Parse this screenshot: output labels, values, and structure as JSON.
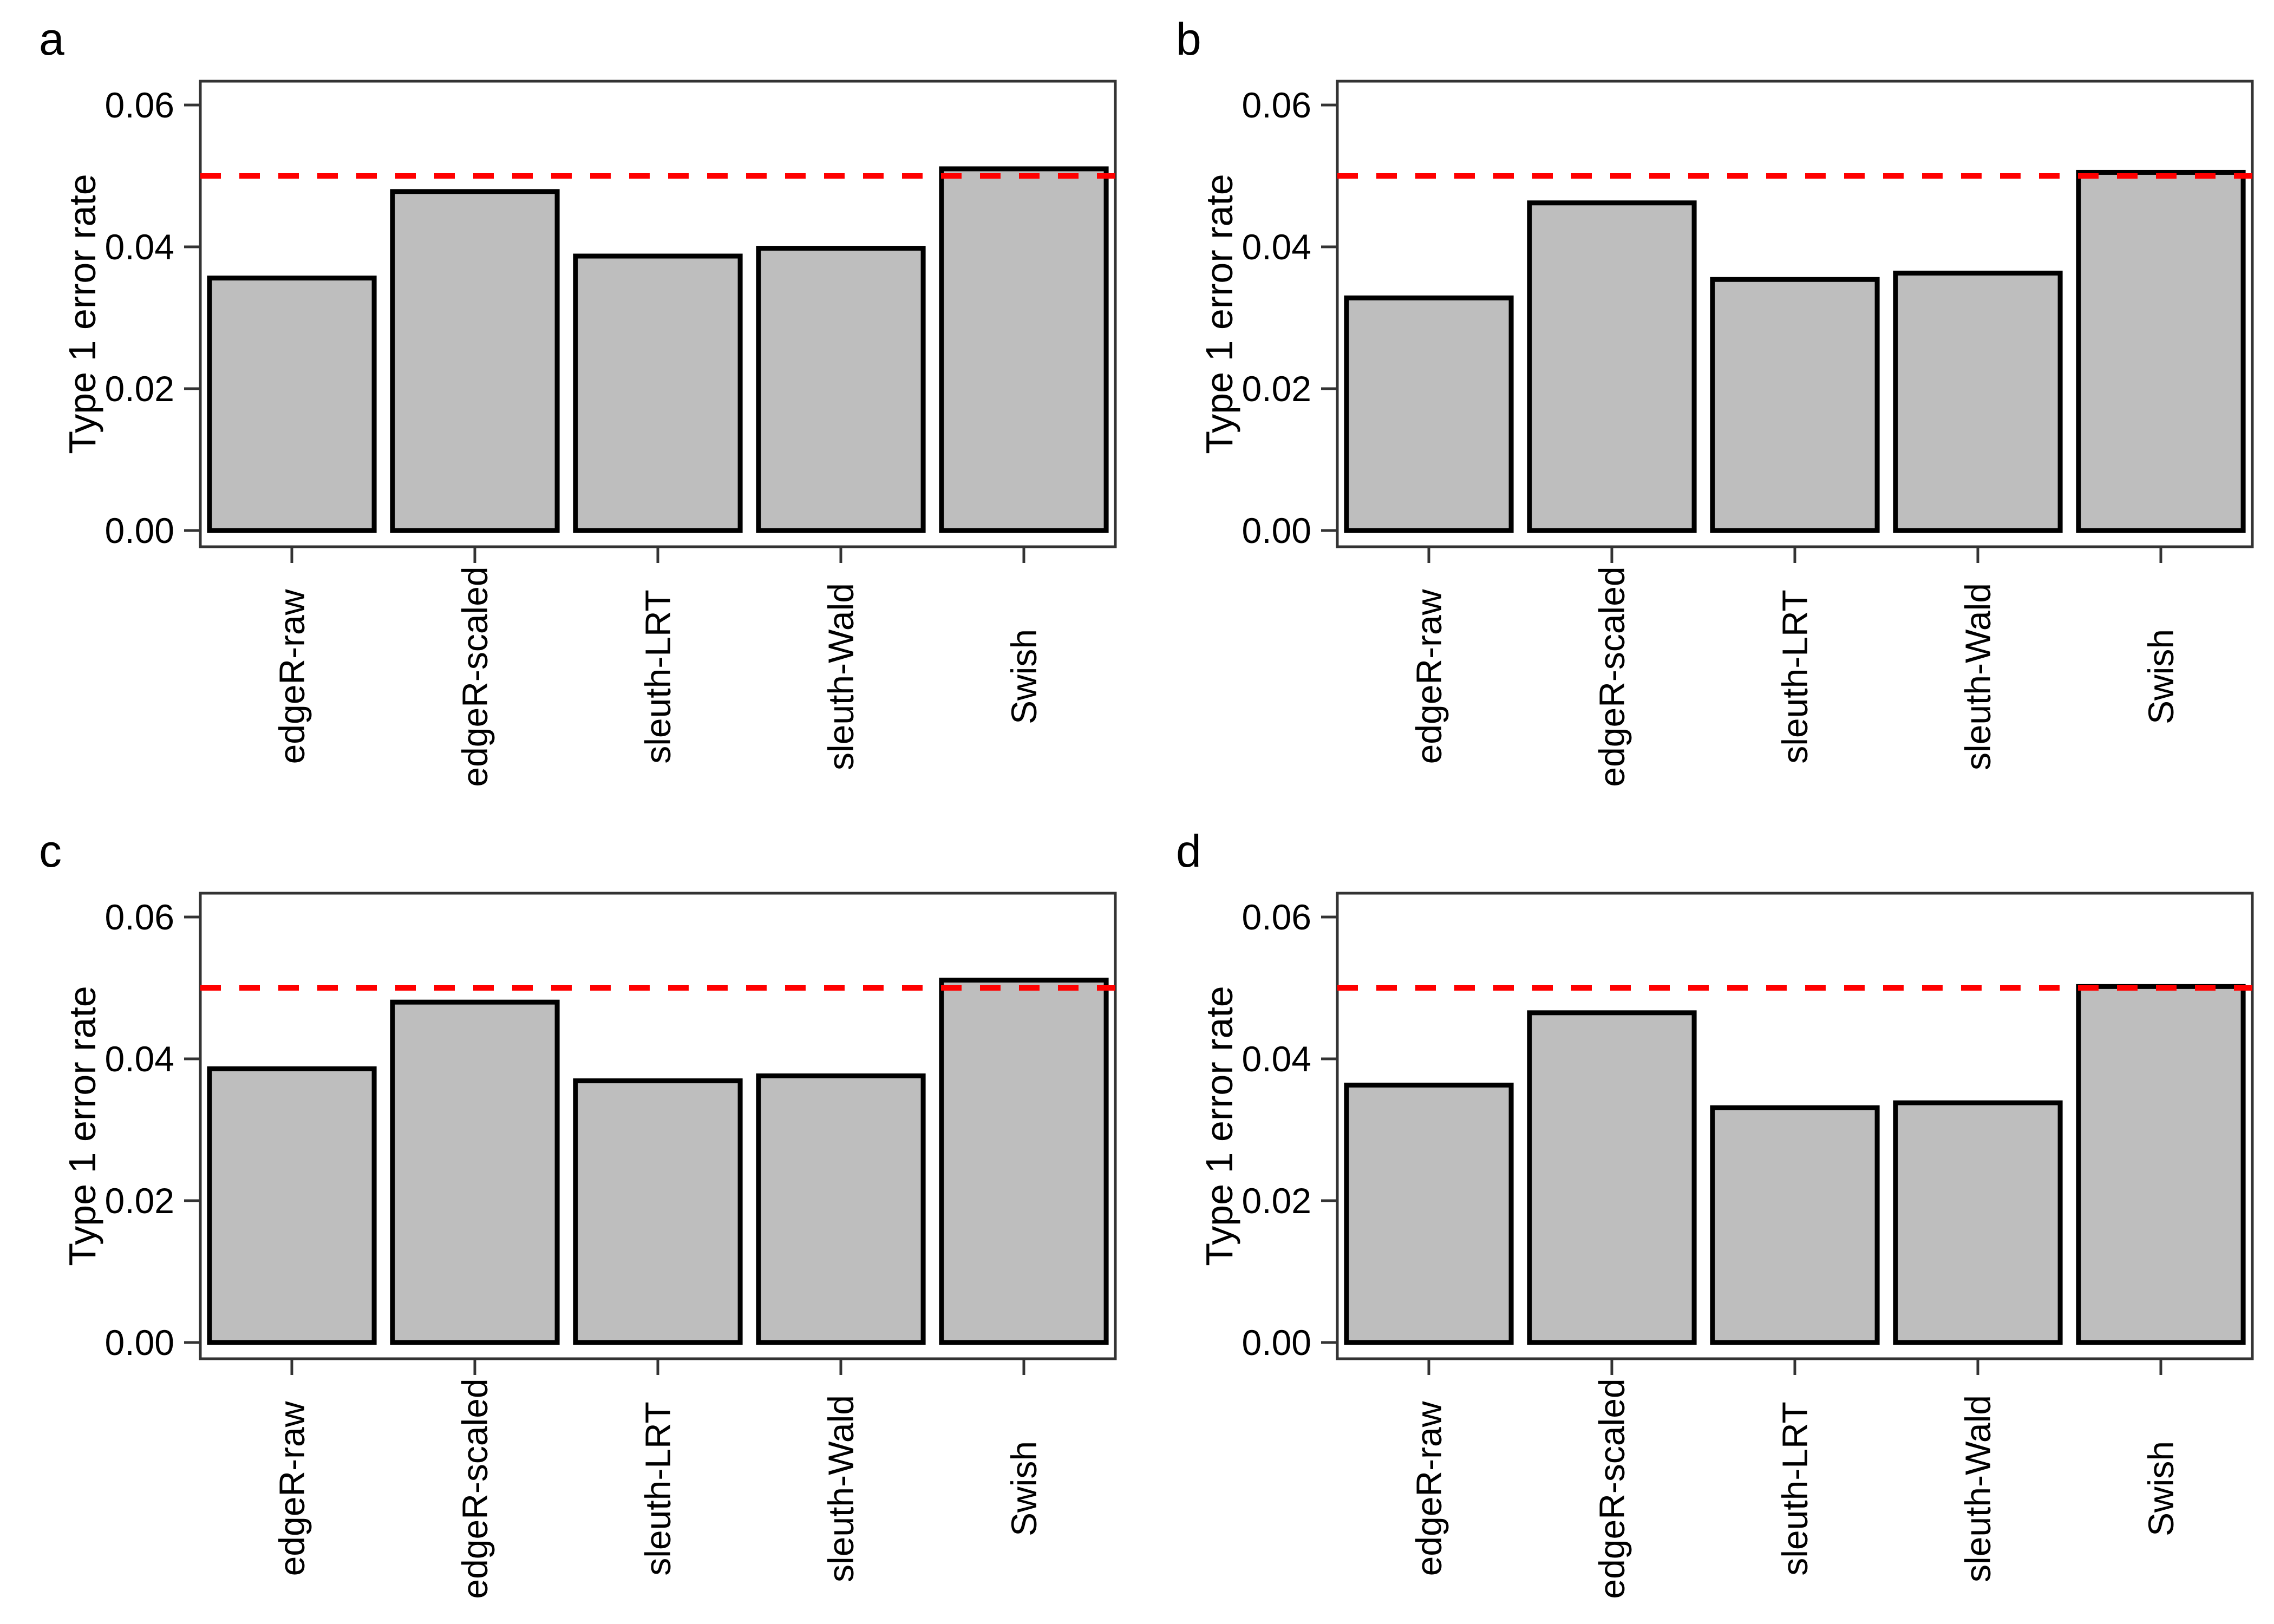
{
  "figure": {
    "background": "#FFFFFF",
    "panels": [
      {
        "letter": "a"
      },
      {
        "letter": "b"
      },
      {
        "letter": "c"
      },
      {
        "letter": "d"
      }
    ]
  },
  "style": {
    "bar_fill": "#BEBEBE",
    "bar_border": "#000000",
    "threshold_color": "#FF0000",
    "axis_color": "#333333",
    "text_color": "#000000"
  },
  "chart_data": [
    {
      "type": "bar",
      "panel": "a",
      "categories": [
        "edgeR-raw",
        "edgeR-scaled",
        "sleuth-LRT",
        "sleuth-Wald",
        "Swish"
      ],
      "values": [
        0.0356,
        0.0478,
        0.0387,
        0.0398,
        0.051
      ],
      "title": "",
      "xlabel": "",
      "ylabel": "Type 1 error rate",
      "ylim": [
        0,
        0.0635
      ],
      "yticks": [
        0,
        0.02,
        0.04,
        0.06
      ],
      "ytick_labels": [
        "0.00",
        "0.02",
        "0.04",
        "0.06"
      ],
      "hline": {
        "value": 0.05,
        "style": "dashed",
        "color": "#FF0000"
      },
      "grid": false,
      "legend": false
    },
    {
      "type": "bar",
      "panel": "b",
      "categories": [
        "edgeR-raw",
        "edgeR-scaled",
        "sleuth-LRT",
        "sleuth-Wald",
        "Swish"
      ],
      "values": [
        0.0328,
        0.0462,
        0.0354,
        0.0363,
        0.0505
      ],
      "title": "",
      "xlabel": "",
      "ylabel": "Type 1 error rate",
      "ylim": [
        0,
        0.0635
      ],
      "yticks": [
        0,
        0.02,
        0.04,
        0.06
      ],
      "ytick_labels": [
        "0.00",
        "0.02",
        "0.04",
        "0.06"
      ],
      "hline": {
        "value": 0.05,
        "style": "dashed",
        "color": "#FF0000"
      },
      "grid": false,
      "legend": false
    },
    {
      "type": "bar",
      "panel": "c",
      "categories": [
        "edgeR-raw",
        "edgeR-scaled",
        "sleuth-LRT",
        "sleuth-Wald",
        "Swish"
      ],
      "values": [
        0.0386,
        0.048,
        0.0369,
        0.0376,
        0.0511
      ],
      "title": "",
      "xlabel": "",
      "ylabel": "Type 1 error rate",
      "ylim": [
        0,
        0.0635
      ],
      "yticks": [
        0,
        0.02,
        0.04,
        0.06
      ],
      "ytick_labels": [
        "0.00",
        "0.02",
        "0.04",
        "0.06"
      ],
      "hline": {
        "value": 0.05,
        "style": "dashed",
        "color": "#FF0000"
      },
      "grid": false,
      "legend": false
    },
    {
      "type": "bar",
      "panel": "d",
      "categories": [
        "edgeR-raw",
        "edgeR-scaled",
        "sleuth-LRT",
        "sleuth-Wald",
        "Swish"
      ],
      "values": [
        0.0363,
        0.0465,
        0.0331,
        0.0338,
        0.0502
      ],
      "title": "",
      "xlabel": "",
      "ylabel": "Type 1 error rate",
      "ylim": [
        0,
        0.0635
      ],
      "yticks": [
        0,
        0.02,
        0.04,
        0.06
      ],
      "ytick_labels": [
        "0.00",
        "0.02",
        "0.04",
        "0.06"
      ],
      "hline": {
        "value": 0.05,
        "style": "dashed",
        "color": "#FF0000"
      },
      "grid": false,
      "legend": false
    }
  ]
}
